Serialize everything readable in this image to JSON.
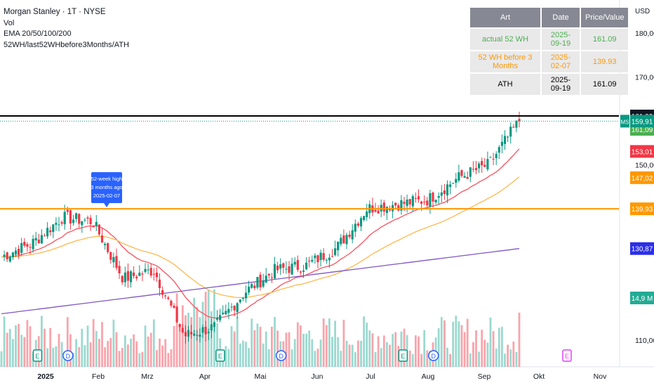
{
  "legend": {
    "symbol": "Morgan Stanley · 1T · NYSE",
    "vol": "Vol",
    "ema": "EMA 20/50/100/200",
    "indicator": "52WH/last52WHbefore3Months/ATH"
  },
  "currency": "USD",
  "table": {
    "headers": [
      "Art",
      "Date",
      "Price/Value"
    ],
    "rows": [
      {
        "art": "actual 52 WH",
        "date": "2025-09-19",
        "value": "161.09",
        "color": "#4caf50"
      },
      {
        "art": "52 WH before 3 Months",
        "date": "2025-02-07",
        "value": "139.93",
        "color": "#ff9800"
      },
      {
        "art": "ATH",
        "date": "2025-09-19",
        "value": "161.09",
        "color": "#131722"
      }
    ]
  },
  "annotation": {
    "lines": [
      "52-week high",
      "3 months ago",
      "2025-02-07"
    ],
    "color": "#2962ff"
  },
  "chart_data": {
    "type": "candlestick",
    "y_axis_ticks": [
      "180,00",
      "170,00",
      "150,00",
      "110,00"
    ],
    "y_tick_values": [
      180,
      170,
      150,
      110
    ],
    "x_axis_ticks": [
      "2025",
      "Feb",
      "Mrz",
      "Apr",
      "Mai",
      "Jun",
      "Jul",
      "Aug",
      "Sep",
      "Okt",
      "Nov"
    ],
    "price_labels": [
      {
        "text": "161,09",
        "value": 161.09,
        "bg": "#131722"
      },
      {
        "text": "161,09",
        "value": 161.09,
        "bg": "#4caf50",
        "offset": 1
      },
      {
        "text": "159,91",
        "value": 159.91,
        "bg": "#089981",
        "tag": "MS"
      },
      {
        "text": "153,01",
        "value": 153.01,
        "bg": "#f23645"
      },
      {
        "text": "147,02",
        "value": 147.02,
        "bg": "#ff9800"
      },
      {
        "text": "139,93",
        "value": 139.93,
        "bg": "#ff9800"
      },
      {
        "text": "130,87",
        "value": 130.87,
        "bg": "#2a2ee8"
      },
      {
        "text": "14,9 M",
        "value": null,
        "bg": "#22ab94"
      }
    ],
    "horizontal_lines": [
      {
        "value": 161.09,
        "color": "#000000"
      },
      {
        "value": 139.93,
        "color": "#ff9800"
      }
    ],
    "last_price": 159.91,
    "ema_series": [
      {
        "period": 20,
        "color": "#f7525f",
        "current": 153.01
      },
      {
        "period": 50,
        "color": "#ffb74d",
        "current": 147.02
      },
      {
        "period": 200,
        "color": "#7e57c2",
        "current": 130.87
      }
    ],
    "month_anchors": [
      {
        "month": "Jan",
        "price": 129
      },
      {
        "month": "Jan-mid",
        "price": 132
      },
      {
        "month": "Feb",
        "price": 138
      },
      {
        "month": "Feb-mid",
        "price": 137
      },
      {
        "month": "Mrz",
        "price": 124
      },
      {
        "month": "Mrz-mid",
        "price": 126
      },
      {
        "month": "Apr",
        "price": 111
      },
      {
        "month": "Apr-mid",
        "price": 113
      },
      {
        "month": "Mai",
        "price": 121
      },
      {
        "month": "Mai-mid",
        "price": 126
      },
      {
        "month": "Jun",
        "price": 127
      },
      {
        "month": "Jun-mid",
        "price": 131
      },
      {
        "month": "Jul",
        "price": 140
      },
      {
        "month": "Jul-mid",
        "price": 141
      },
      {
        "month": "Aug",
        "price": 142
      },
      {
        "month": "Aug-mid",
        "price": 147
      },
      {
        "month": "Sep",
        "price": 150
      },
      {
        "month": "Sep-mid",
        "price": 160
      }
    ],
    "event_markers": [
      {
        "kind": "E",
        "month": "Jan-mid"
      },
      {
        "kind": "D",
        "month": "Feb"
      },
      {
        "kind": "E",
        "month": "Apr-mid"
      },
      {
        "kind": "D",
        "month": "Mai-mid"
      },
      {
        "kind": "E",
        "month": "Jul-mid"
      },
      {
        "kind": "D",
        "month": "Aug"
      },
      {
        "kind": "E-future",
        "month": "Okt"
      }
    ]
  }
}
